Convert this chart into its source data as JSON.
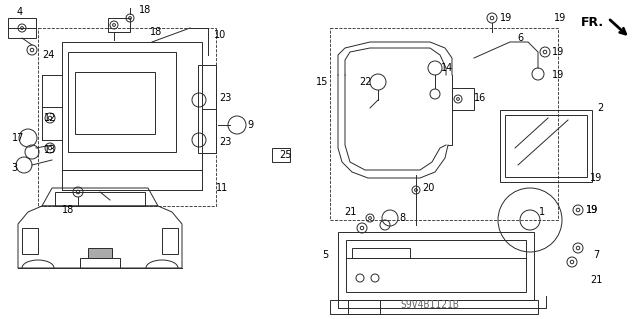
{
  "bg_color": "#ffffff",
  "watermark": "S9V4B1121B",
  "fr_label": "FR.",
  "diagram_color": "#2a2a2a",
  "label_fontsize": 7.0,
  "watermark_fontsize": 7,
  "fr_fontsize": 9
}
